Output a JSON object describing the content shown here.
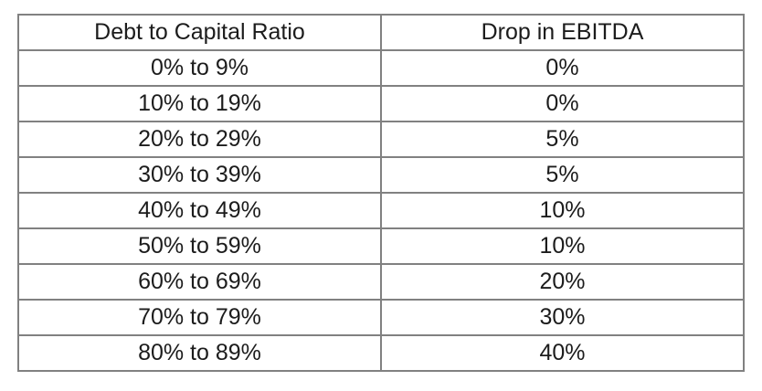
{
  "table": {
    "headers": [
      "Debt to Capital Ratio",
      "Drop in EBITDA"
    ],
    "rows": [
      [
        "0% to 9%",
        "0%"
      ],
      [
        "10% to 19%",
        "0%"
      ],
      [
        "20% to 29%",
        "5%"
      ],
      [
        "30% to 39%",
        "5%"
      ],
      [
        "40% to 49%",
        "10%"
      ],
      [
        "50% to 59%",
        "10%"
      ],
      [
        "60% to 69%",
        "20%"
      ],
      [
        "70% to 79%",
        "30%"
      ],
      [
        "80% to 89%",
        "40%"
      ]
    ],
    "colors": {
      "border": "#818181",
      "text": "#1c1c1c",
      "background": "#ffffff"
    }
  },
  "chart_data": {
    "type": "table",
    "title": "",
    "columns": [
      "Debt to Capital Ratio",
      "Drop in EBITDA"
    ],
    "categories": [
      "0% to 9%",
      "10% to 19%",
      "20% to 29%",
      "30% to 39%",
      "40% to 49%",
      "50% to 59%",
      "60% to 69%",
      "70% to 79%",
      "80% to 89%"
    ],
    "values": [
      "0%",
      "0%",
      "5%",
      "5%",
      "10%",
      "10%",
      "20%",
      "30%",
      "40%"
    ]
  }
}
